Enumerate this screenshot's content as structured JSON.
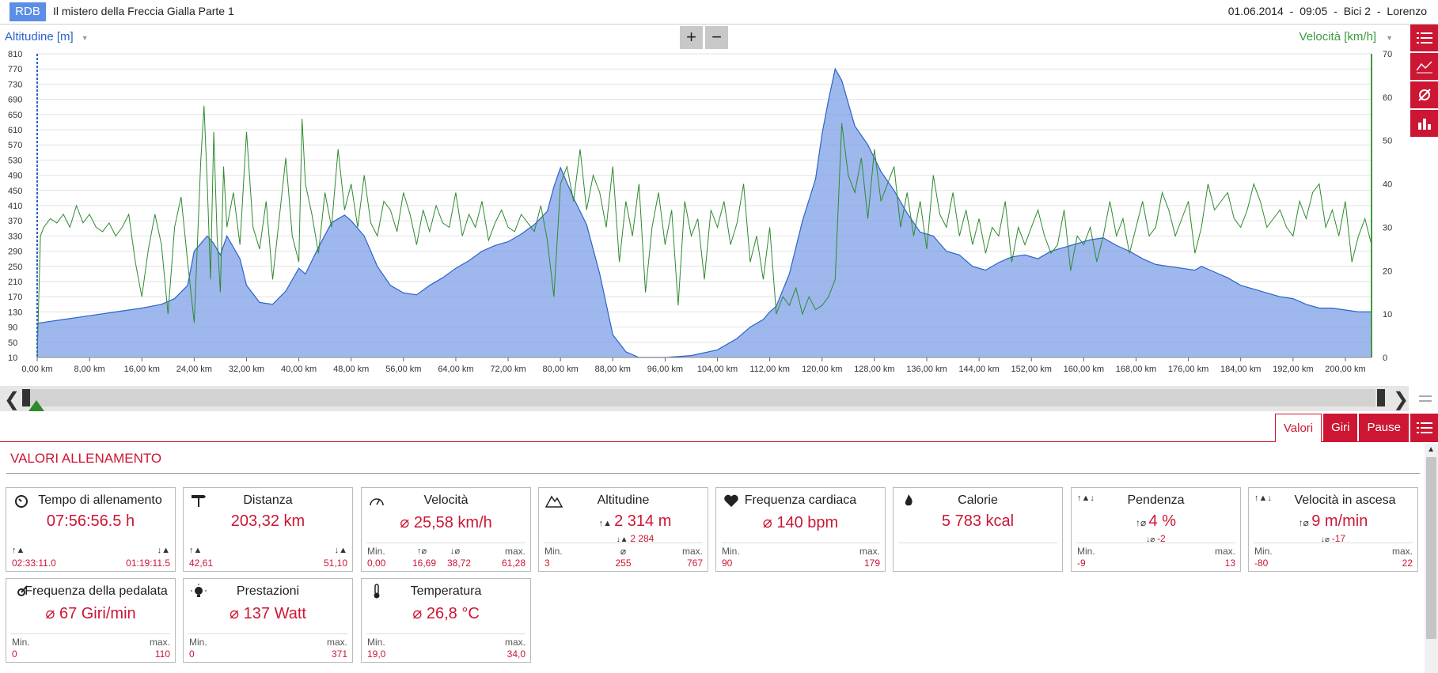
{
  "header": {
    "logo": "RDB",
    "title": "Il mistero della Freccia Gialla Parte 1",
    "date": "01.06.2014",
    "time": "09:05",
    "bike": "Bici 2",
    "user": "Lorenzo",
    "sep": "-"
  },
  "chart": {
    "left_axis_title": "Altitudine [m]",
    "right_axis_title": "Velocità [km/h]",
    "zoom_in": "+",
    "zoom_out": "−",
    "colors": {
      "altitude": "#7ea0e8",
      "altitude_line": "#2c63c9",
      "speed": "#2f8a2f"
    }
  },
  "chart_data": {
    "type": "area",
    "xlabel": "",
    "x_ticks": [
      "0,00 km",
      "8,00 km",
      "16,00 km",
      "24,00 km",
      "32,00 km",
      "40,00 km",
      "48,00 km",
      "56,00 km",
      "64,00 km",
      "72,00 km",
      "80,00 km",
      "88,00 km",
      "96,00 km",
      "104,00 km",
      "112,00 km",
      "120,00 km",
      "128,00 km",
      "136,00 km",
      "144,00 km",
      "152,00 km",
      "160,00 km",
      "168,00 km",
      "176,00 km",
      "184,00 km",
      "192,00 km",
      "200,00 km"
    ],
    "y_left_ticks": [
      "10",
      "50",
      "90",
      "130",
      "170",
      "210",
      "250",
      "290",
      "330",
      "370",
      "410",
      "450",
      "490",
      "530",
      "570",
      "610",
      "650",
      "690",
      "730",
      "770",
      "810"
    ],
    "y_right_ticks": [
      "0",
      "10",
      "20",
      "30",
      "40",
      "50",
      "60",
      "70"
    ],
    "ylim_left": [
      10,
      810
    ],
    "ylim_right": [
      0,
      70
    ],
    "xlim": [
      0,
      204
    ],
    "series": [
      {
        "name": "Altitudine [m]",
        "axis": "left",
        "x": [
          0,
          4,
          8,
          12,
          16,
          19,
          21,
          23,
          24,
          26,
          27,
          28,
          29,
          31,
          32,
          34,
          36,
          38,
          40,
          41,
          43,
          45,
          47,
          48,
          50,
          52,
          54,
          56,
          58,
          60,
          62,
          64,
          66,
          68,
          70,
          72,
          74,
          76,
          78,
          79,
          80,
          82,
          84,
          86,
          88,
          90,
          92,
          96,
          100,
          104,
          107,
          109,
          111,
          112,
          113,
          115,
          117,
          119,
          120,
          121,
          122,
          123,
          124,
          125,
          127,
          129,
          131,
          133,
          135,
          137,
          139,
          141,
          143,
          145,
          147,
          149,
          151,
          153,
          155,
          157,
          159,
          161,
          163,
          165,
          167,
          169,
          171,
          173,
          175,
          177,
          178,
          180,
          182,
          184,
          186,
          188,
          190,
          192,
          194,
          196,
          198,
          200,
          202,
          204
        ],
        "y": [
          100,
          110,
          120,
          130,
          140,
          150,
          165,
          200,
          290,
          330,
          310,
          280,
          330,
          270,
          200,
          155,
          150,
          185,
          245,
          230,
          300,
          365,
          385,
          370,
          330,
          250,
          200,
          180,
          175,
          200,
          220,
          245,
          265,
          290,
          305,
          315,
          335,
          360,
          395,
          460,
          510,
          430,
          360,
          230,
          70,
          25,
          10,
          10,
          15,
          30,
          60,
          90,
          110,
          130,
          145,
          230,
          370,
          480,
          600,
          690,
          770,
          740,
          680,
          620,
          570,
          500,
          450,
          390,
          340,
          330,
          290,
          280,
          250,
          240,
          260,
          275,
          280,
          270,
          290,
          300,
          310,
          320,
          325,
          305,
          290,
          270,
          255,
          250,
          245,
          240,
          250,
          235,
          220,
          200,
          190,
          180,
          170,
          165,
          150,
          140,
          140,
          135,
          130,
          130
        ]
      },
      {
        "name": "Velocità [km/h]",
        "axis": "right",
        "x": [
          0,
          0.5,
          1,
          2,
          3,
          4,
          5,
          6,
          7,
          8,
          9,
          10,
          11,
          12,
          13,
          14,
          15,
          16,
          17,
          18,
          19,
          20,
          21,
          22,
          23,
          24,
          25,
          25.5,
          26,
          26.5,
          27,
          27.5,
          28,
          28.5,
          29,
          30,
          31,
          32,
          33,
          34,
          35,
          36,
          37,
          38,
          39,
          40,
          40.5,
          41,
          42,
          43,
          44,
          45,
          46,
          47,
          48,
          49,
          50,
          51,
          52,
          53,
          54,
          55,
          56,
          57,
          58,
          59,
          60,
          61,
          62,
          63,
          64,
          65,
          66,
          67,
          68,
          69,
          70,
          71,
          72,
          73,
          74,
          75,
          76,
          77,
          78,
          79,
          80,
          81,
          82,
          83,
          84,
          85,
          86,
          87,
          88,
          89,
          90,
          91,
          92,
          93,
          94,
          95,
          96,
          97,
          98,
          99,
          100,
          101,
          102,
          103,
          104,
          105,
          106,
          107,
          108,
          109,
          110,
          111,
          112,
          113,
          114,
          115,
          116,
          117,
          118,
          119,
          120,
          121,
          122,
          123,
          124,
          125,
          126,
          127,
          128,
          129,
          130,
          131,
          132,
          133,
          134,
          135,
          136,
          137,
          138,
          139,
          140,
          141,
          142,
          143,
          144,
          145,
          146,
          147,
          148,
          149,
          150,
          151,
          152,
          153,
          154,
          155,
          156,
          157,
          158,
          159,
          160,
          161,
          162,
          163,
          164,
          165,
          166,
          167,
          168,
          169,
          170,
          171,
          172,
          173,
          174,
          175,
          176,
          177,
          178,
          179,
          180,
          181,
          182,
          183,
          184,
          185,
          186,
          187,
          188,
          189,
          190,
          191,
          192,
          193,
          194,
          195,
          196,
          197,
          198,
          199,
          200,
          201,
          202,
          203,
          204
        ],
        "y": [
          0,
          28,
          30,
          32,
          31,
          33,
          30,
          35,
          31,
          33,
          30,
          29,
          31,
          28,
          30,
          33,
          22,
          14,
          25,
          33,
          26,
          10,
          30,
          37,
          22,
          8,
          45,
          58,
          40,
          18,
          52,
          28,
          15,
          44,
          30,
          38,
          26,
          52,
          30,
          25,
          36,
          18,
          32,
          46,
          28,
          22,
          55,
          40,
          33,
          24,
          38,
          30,
          48,
          34,
          40,
          30,
          42,
          31,
          28,
          36,
          34,
          29,
          38,
          33,
          26,
          34,
          29,
          35,
          31,
          30,
          38,
          28,
          33,
          30,
          36,
          27,
          31,
          34,
          30,
          29,
          33,
          31,
          29,
          35,
          27,
          14,
          40,
          44,
          36,
          48,
          34,
          42,
          38,
          30,
          44,
          22,
          36,
          28,
          40,
          15,
          30,
          38,
          26,
          34,
          12,
          36,
          28,
          32,
          18,
          34,
          30,
          36,
          26,
          31,
          40,
          22,
          28,
          18,
          30,
          10,
          14,
          12,
          16,
          10,
          14,
          11,
          12,
          14,
          18,
          54,
          42,
          38,
          46,
          32,
          48,
          36,
          40,
          44,
          30,
          38,
          28,
          36,
          25,
          42,
          33,
          30,
          38,
          28,
          34,
          26,
          32,
          24,
          30,
          28,
          36,
          22,
          30,
          26,
          30,
          34,
          28,
          24,
          26,
          34,
          20,
          28,
          26,
          30,
          22,
          28,
          36,
          28,
          32,
          24,
          30,
          36,
          28,
          30,
          38,
          34,
          28,
          32,
          36,
          24,
          30,
          40,
          34,
          36,
          38,
          32,
          30,
          34,
          40,
          36,
          30,
          32,
          34,
          30,
          28,
          36,
          32,
          38,
          40,
          30,
          34,
          28,
          36,
          22,
          28,
          32,
          26
        ]
      }
    ]
  },
  "navigator": {
    "left_arrow": "❮",
    "right_arrow": "❯"
  },
  "tabs": {
    "valori": "Valori",
    "giri": "Giri",
    "pause": "Pause"
  },
  "section_title": "VALORI ALLENAMENTO",
  "cards": {
    "tempo": {
      "title": "Tempo di allenamento",
      "value": "07:56:56.5 h",
      "left": "02:33:11.0",
      "right": "01:19:11.5",
      "icon": "stopwatch-icon"
    },
    "distanza": {
      "title": "Distanza",
      "value": "203,32 km",
      "left": "42,61",
      "right": "51,10",
      "icon": "signpost-icon"
    },
    "velocita": {
      "title": "Velocità",
      "value": "⌀ 25,58 km/h",
      "min_label": "Min.",
      "max_label": "max.",
      "min": "0,00",
      "up": "16,69",
      "down": "38,72",
      "max": "61,28",
      "icon": "speedometer-icon"
    },
    "altitudine": {
      "title": "Altitudine",
      "value": "2 314 m",
      "sub": "2 284",
      "min_label": "Min.",
      "max_label": "max.",
      "avg_label": "⌀",
      "min": "3",
      "avg": "255",
      "max": "767",
      "icon": "mountain-icon"
    },
    "frequenza": {
      "title": "Frequenza cardiaca",
      "value": "⌀ 140 bpm",
      "min_label": "Min.",
      "max_label": "max.",
      "min": "90",
      "max": "179",
      "icon": "heart-icon"
    },
    "calorie": {
      "title": "Calorie",
      "value": "5 783 kcal",
      "icon": "flame-icon"
    },
    "pendenza": {
      "title": "Pendenza",
      "value": "4 %",
      "sub": "-2",
      "min_label": "Min.",
      "max_label": "max.",
      "min": "-9",
      "max": "13",
      "icon": "slope-icon"
    },
    "ascesa": {
      "title": "Velocità in ascesa",
      "value": "9 m/min",
      "sub": "-17",
      "min_label": "Min.",
      "max_label": "max.",
      "min": "-80",
      "max": "22",
      "icon": "climb-icon"
    },
    "pedalata": {
      "title": "Frequenza della pedalata",
      "value": "⌀ 67 Giri/min",
      "min_label": "Min.",
      "max_label": "max.",
      "min": "0",
      "max": "110",
      "icon": "crank-icon"
    },
    "prestazioni": {
      "title": "Prestazioni",
      "value": "⌀ 137 Watt",
      "min_label": "Min.",
      "max_label": "max.",
      "min": "0",
      "max": "371",
      "icon": "bulb-icon"
    },
    "temperatura": {
      "title": "Temperatura",
      "value": "⌀ 26,8 °C",
      "min_label": "Min.",
      "max_label": "max.",
      "min": "19,0",
      "max": "34,0",
      "icon": "thermometer-icon"
    }
  }
}
